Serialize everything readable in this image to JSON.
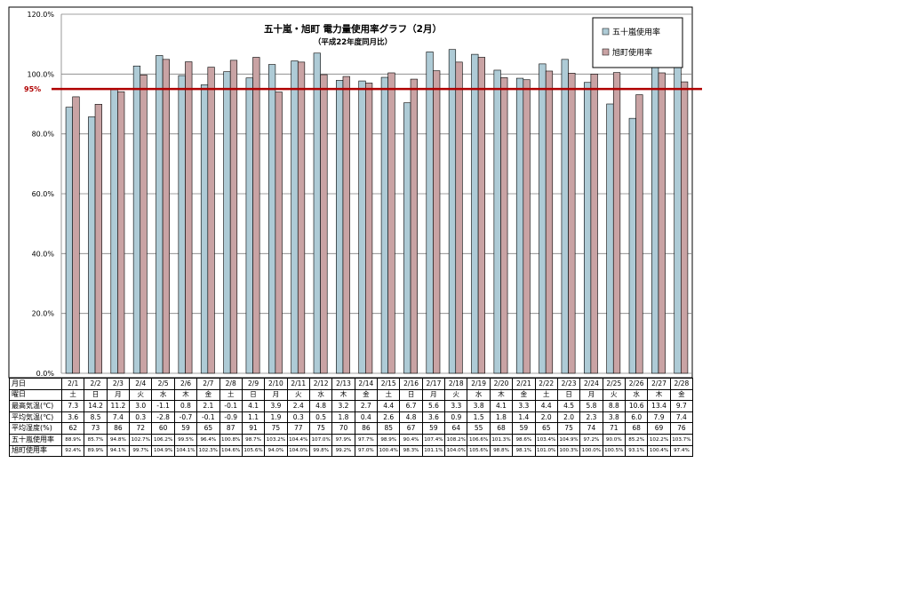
{
  "chart_data": {
    "type": "bar",
    "title": "五十嵐・旭町 電力量使用率グラフ（2月）",
    "subtitle": "（平成22年度同月比）",
    "categories": [
      "2/1",
      "2/2",
      "2/3",
      "2/4",
      "2/5",
      "2/6",
      "2/7",
      "2/8",
      "2/9",
      "2/10",
      "2/11",
      "2/12",
      "2/13",
      "2/14",
      "2/15",
      "2/16",
      "2/17",
      "2/18",
      "2/19",
      "2/20",
      "2/21",
      "2/22",
      "2/23",
      "2/24",
      "2/25",
      "2/26",
      "2/27",
      "2/28"
    ],
    "series": [
      {
        "name": "五十嵐使用率",
        "color": "#aecbd6",
        "values": [
          88.9,
          85.7,
          94.8,
          102.7,
          106.2,
          99.5,
          96.4,
          100.8,
          98.7,
          103.2,
          104.4,
          107.0,
          97.9,
          97.7,
          98.9,
          90.4,
          107.4,
          108.2,
          106.6,
          101.3,
          98.6,
          103.4,
          104.9,
          97.2,
          90.0,
          85.2,
          102.2,
          103.7
        ]
      },
      {
        "name": "旭町使用率",
        "color": "#c9a3a4",
        "values": [
          92.4,
          89.9,
          94.1,
          99.7,
          104.9,
          104.1,
          102.3,
          104.6,
          105.6,
          94.0,
          104.0,
          99.8,
          99.2,
          97.0,
          100.4,
          98.3,
          101.1,
          104.0,
          105.6,
          98.8,
          98.1,
          101.0,
          100.3,
          100.0,
          100.5,
          93.1,
          100.4,
          97.4
        ]
      }
    ],
    "reference_line": {
      "value": 95,
      "label": "95%",
      "color": "#b00000"
    },
    "y_ticks": [
      "0.0%",
      "20.0%",
      "40.0%",
      "60.0%",
      "80.0%",
      "100.0%",
      "120.0%"
    ],
    "ylim": [
      0,
      120
    ],
    "grid": true,
    "legend_position": "top-right"
  },
  "table": {
    "rows": [
      {
        "label": "月日",
        "values": [
          "2/1",
          "2/2",
          "2/3",
          "2/4",
          "2/5",
          "2/6",
          "2/7",
          "2/8",
          "2/9",
          "2/10",
          "2/11",
          "2/12",
          "2/13",
          "2/14",
          "2/15",
          "2/16",
          "2/17",
          "2/18",
          "2/19",
          "2/20",
          "2/21",
          "2/22",
          "2/23",
          "2/24",
          "2/25",
          "2/26",
          "2/27",
          "2/28"
        ]
      },
      {
        "label": "曜日",
        "values": [
          "土",
          "日",
          "月",
          "火",
          "水",
          "木",
          "金",
          "土",
          "日",
          "月",
          "火",
          "水",
          "木",
          "金",
          "土",
          "日",
          "月",
          "火",
          "水",
          "木",
          "金",
          "土",
          "日",
          "月",
          "火",
          "水",
          "木",
          "金"
        ]
      },
      {
        "label": "最高気温(℃)",
        "values": [
          "7.3",
          "14.2",
          "11.2",
          "3.0",
          "-1.1",
          "0.8",
          "2.1",
          "-0.1",
          "4.1",
          "3.9",
          "2.4",
          "4.8",
          "3.2",
          "2.7",
          "4.4",
          "6.7",
          "5.6",
          "3.3",
          "3.8",
          "4.1",
          "3.3",
          "4.4",
          "4.5",
          "5.8",
          "8.8",
          "10.6",
          "13.4",
          "9.7"
        ]
      },
      {
        "label": "平均気温(℃)",
        "values": [
          "3.6",
          "8.5",
          "7.4",
          "0.3",
          "-2.8",
          "-0.7",
          "-0.1",
          "-0.9",
          "1.1",
          "1.9",
          "0.3",
          "0.5",
          "1.8",
          "0.4",
          "2.6",
          "4.8",
          "3.6",
          "0.9",
          "1.5",
          "1.8",
          "1.4",
          "2.0",
          "2.0",
          "2.3",
          "3.8",
          "6.0",
          "7.9",
          "7.4"
        ]
      },
      {
        "label": "平均湿度(%)",
        "values": [
          "62",
          "73",
          "86",
          "72",
          "60",
          "59",
          "65",
          "87",
          "91",
          "75",
          "77",
          "75",
          "70",
          "86",
          "85",
          "67",
          "59",
          "64",
          "55",
          "68",
          "59",
          "65",
          "75",
          "74",
          "71",
          "68",
          "69",
          "76"
        ]
      },
      {
        "label": "五十嵐使用率",
        "small": true,
        "values": [
          "88.9%",
          "85.7%",
          "94.8%",
          "102.7%",
          "106.2%",
          "99.5%",
          "96.4%",
          "100.8%",
          "98.7%",
          "103.2%",
          "104.4%",
          "107.0%",
          "97.9%",
          "97.7%",
          "98.9%",
          "90.4%",
          "107.4%",
          "108.2%",
          "106.6%",
          "101.3%",
          "98.6%",
          "103.4%",
          "104.9%",
          "97.2%",
          "90.0%",
          "85.2%",
          "102.2%",
          "103.7%"
        ]
      },
      {
        "label": "旭町使用率",
        "small": true,
        "values": [
          "92.4%",
          "89.9%",
          "94.1%",
          "99.7%",
          "104.9%",
          "104.1%",
          "102.3%",
          "104.6%",
          "105.6%",
          "94.0%",
          "104.0%",
          "99.8%",
          "99.2%",
          "97.0%",
          "100.4%",
          "98.3%",
          "101.1%",
          "104.0%",
          "105.6%",
          "98.8%",
          "98.1%",
          "101.0%",
          "100.3%",
          "100.0%",
          "100.5%",
          "93.1%",
          "100.4%",
          "97.4%"
        ]
      }
    ]
  }
}
